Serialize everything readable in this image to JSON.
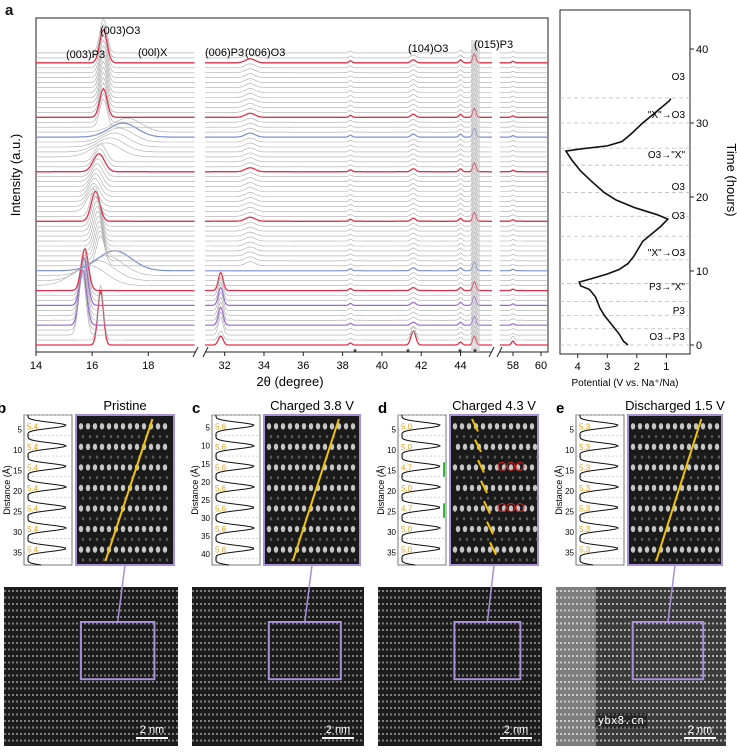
{
  "panel_a": {
    "letter": "a",
    "ylabel": "Intensity (a.u.)",
    "xlabel": "2θ (degree)",
    "xticks_left": [
      "14",
      "16",
      "18"
    ],
    "xticks_mid": [
      "32",
      "34",
      "36",
      "38",
      "40",
      "42",
      "44"
    ],
    "xticks_right": [
      "58",
      "60"
    ],
    "peak_labels": {
      "p003_p3": "(003)P3",
      "p003_o3": "(003)O3",
      "p00l_x": "(00l)X",
      "p006_p3": "(006)P3",
      "p006_o3": "(006)O3",
      "p104_o3": "(104)O3",
      "p015_p3": "(015)P3"
    },
    "stars": [
      "*",
      "*",
      "*",
      "*"
    ],
    "potential_xlabel": "Potential (V vs. Na⁺/Na)",
    "potential_xticks": [
      "4",
      "3",
      "2",
      "1"
    ],
    "time_label": "Time (hours)",
    "time_ticks": [
      "0",
      "10",
      "20",
      "30",
      "40"
    ],
    "phase_labels": [
      "O3",
      "\"X\"→O3",
      "O3→\"X\"",
      "O3",
      "O3",
      "\"X\"→O3",
      "P3→\"X\"",
      "P3",
      "O3→P3"
    ]
  },
  "tem_panels": [
    {
      "letter": "b",
      "title": "Pristine",
      "distance_label": "Distance (Å)",
      "yticks": [
        "5",
        "10",
        "15",
        "20",
        "25",
        "30",
        "35"
      ],
      "spacings": [
        "5.4",
        "5.4",
        "5.4",
        "5.4",
        "5.4",
        "5.4",
        "5.4"
      ],
      "scale_bar": "2 nm"
    },
    {
      "letter": "c",
      "title": "Charged 3.8 V",
      "distance_label": "Distance (Å)",
      "yticks": [
        "5",
        "10",
        "15",
        "20",
        "25",
        "30",
        "35",
        "40"
      ],
      "spacings": [
        "5.6",
        "5.6",
        "5.6",
        "5.6",
        "5.6",
        "5.6",
        "5.6"
      ],
      "scale_bar": "2 nm"
    },
    {
      "letter": "d",
      "title": "Charged 4.3 V",
      "distance_label": "Distance (Å)",
      "yticks": [
        "5",
        "10",
        "15",
        "20",
        "25",
        "30",
        "35"
      ],
      "spacings": [
        "5.0",
        "5.0",
        "4.7",
        "5.0",
        "4.7",
        "5.0",
        "5.0"
      ],
      "scale_bar": "2 nm"
    },
    {
      "letter": "e",
      "title": "Discharged 1.5 V",
      "distance_label": "Distance (Å)",
      "yticks": [
        "5",
        "10",
        "15",
        "20",
        "25",
        "30",
        "35"
      ],
      "spacings": [
        "5.3",
        "5.3",
        "5.3",
        "5.3",
        "5.3",
        "5.3",
        "5.3"
      ],
      "scale_bar": "2 nm"
    }
  ],
  "watermark": "ybx8.cn",
  "colors": {
    "red_trace": "#e0304a",
    "blue_trace": "#7b8fd0",
    "purple_trace": "#9a6ad0",
    "gray_trace": "#a9a9a9",
    "frame_purple": "#a98fd8",
    "yellow_line": "#f2c300",
    "spacing_text": "#e8a020",
    "green_mark": "#2fb83c",
    "red_circle": "#e02020"
  }
}
